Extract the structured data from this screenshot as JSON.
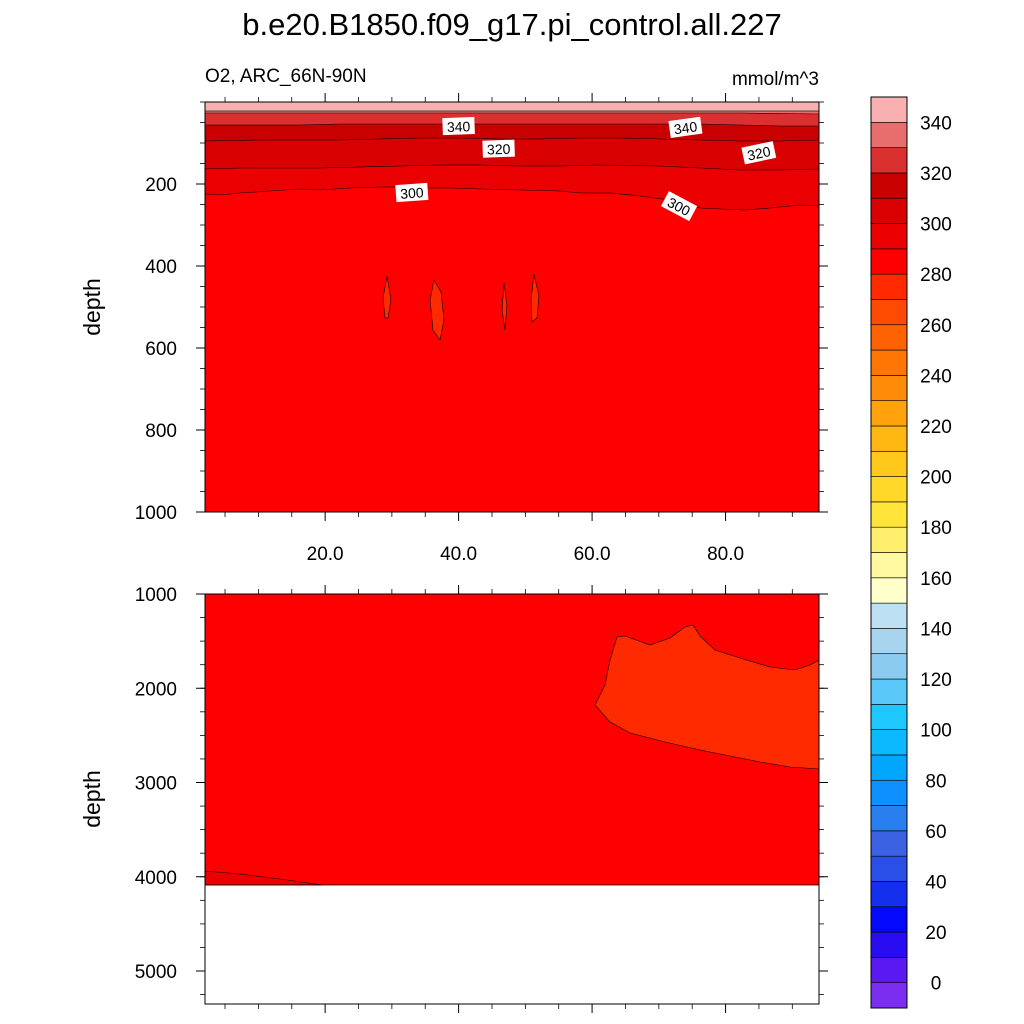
{
  "figure": {
    "title": "b.e20.B1850.f09_g17.pi_control.all.227",
    "left_subtitle": "O2, ARC_66N-90N",
    "right_subtitle": "mmol/m^3"
  },
  "chart_data": [
    {
      "type": "heatmap",
      "panel": "upper",
      "ylabel": "depth",
      "xlim": [
        2,
        94
      ],
      "ylim": [
        1000,
        0
      ],
      "x_ticks": [
        "20.0",
        "40.0",
        "60.0",
        "80.0"
      ],
      "x_tick_values": [
        20,
        40,
        60,
        80
      ],
      "y_ticks": [
        "200",
        "400",
        "600",
        "800",
        "1000"
      ],
      "y_tick_values": [
        200,
        400,
        600,
        800,
        1000
      ],
      "contour_labels": [
        {
          "text": "340",
          "x": 40,
          "y": 60
        },
        {
          "text": "340",
          "x": 74,
          "y": 63
        },
        {
          "text": "320",
          "x": 46,
          "y": 115
        },
        {
          "text": "320",
          "x": 85,
          "y": 125
        },
        {
          "text": "300",
          "x": 33,
          "y": 222
        },
        {
          "text": "300",
          "x": 73,
          "y": 255
        }
      ]
    },
    {
      "type": "heatmap",
      "panel": "lower",
      "ylabel": "depth",
      "xlim": [
        2,
        94
      ],
      "ylim": [
        5350,
        1000
      ],
      "x_tick_values": [
        20,
        40,
        60,
        80
      ],
      "y_ticks": [
        "1000",
        "2000",
        "3000",
        "4000",
        "5000"
      ],
      "y_tick_values": [
        1000,
        2000,
        3000,
        4000,
        5000
      ],
      "bottom_depth": 4120
    }
  ],
  "colorbar": {
    "tick_labels": [
      "0",
      "20",
      "40",
      "60",
      "80",
      "100",
      "120",
      "140",
      "160",
      "180",
      "200",
      "220",
      "240",
      "260",
      "280",
      "300",
      "320",
      "340"
    ],
    "colors": [
      "#7b2ef0",
      "#5a19f0",
      "#2a0cf2",
      "#0509fb",
      "#1430ee",
      "#2a4fe6",
      "#3a62e2",
      "#2a7ff0",
      "#0f90ff",
      "#00a6ff",
      "#0ab9ff",
      "#1ec8ff",
      "#5ac8f8",
      "#8ccbf0",
      "#a8d4f0",
      "#bde0f2",
      "#ffffcc",
      "#fff8a0",
      "#ffef6c",
      "#ffe43a",
      "#ffd82a",
      "#ffc81a",
      "#ffb712",
      "#ffa20c",
      "#ff8c08",
      "#ff7605",
      "#ff6203",
      "#ff4a02",
      "#ff2a00",
      "#ff0000",
      "#ea0000",
      "#d80000",
      "#c80000",
      "#db3030",
      "#e86e6e",
      "#f9b0b0"
    ]
  }
}
